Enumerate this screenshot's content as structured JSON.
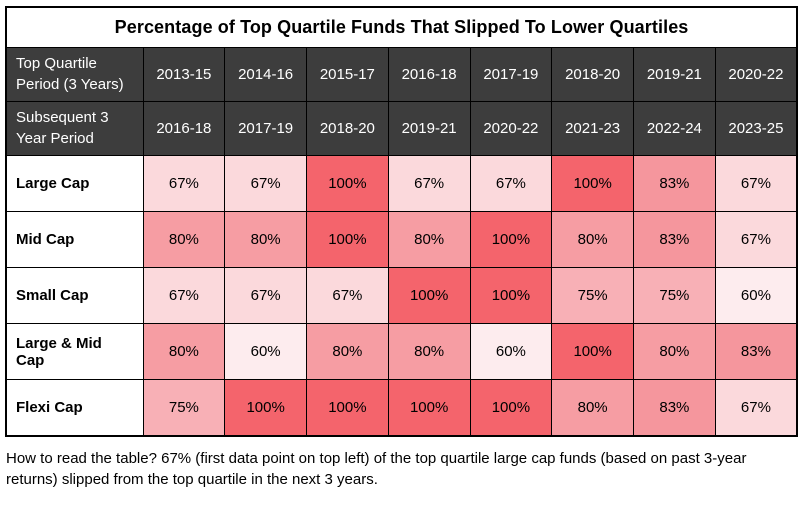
{
  "chart_data": {
    "type": "heatmap",
    "title": "Percentage of Top Quartile Funds That Slipped To Lower Quartiles",
    "row_header_top": "Top Quartile Period (3 Years)",
    "row_header_bottom": "Subsequent 3 Year Period",
    "top_quartile_periods": [
      "2013-15",
      "2014-16",
      "2015-17",
      "2016-18",
      "2017-19",
      "2018-20",
      "2019-21",
      "2020-22"
    ],
    "subsequent_periods": [
      "2016-18",
      "2017-19",
      "2018-20",
      "2019-21",
      "2020-22",
      "2021-23",
      "2022-24",
      "2023-25"
    ],
    "rows": [
      {
        "label": "Large Cap",
        "values": [
          "67%",
          "67%",
          "100%",
          "67%",
          "67%",
          "100%",
          "83%",
          "67%"
        ]
      },
      {
        "label": "Mid Cap",
        "values": [
          "80%",
          "80%",
          "100%",
          "80%",
          "100%",
          "80%",
          "83%",
          "67%"
        ]
      },
      {
        "label": "Small Cap",
        "values": [
          "67%",
          "67%",
          "67%",
          "100%",
          "100%",
          "75%",
          "75%",
          "60%"
        ]
      },
      {
        "label": "Large & Mid Cap",
        "values": [
          "80%",
          "60%",
          "80%",
          "80%",
          "60%",
          "100%",
          "80%",
          "83%"
        ]
      },
      {
        "label": "Flexi Cap",
        "values": [
          "75%",
          "100%",
          "100%",
          "100%",
          "100%",
          "80%",
          "83%",
          "67%"
        ]
      }
    ]
  },
  "colors": {
    "header_bg": "#3d3d3d",
    "header_text": "#ffffff",
    "border": "#000000",
    "heatmap": {
      "60%": "#fdecee",
      "67%": "#fbd9dc",
      "75%": "#f8b0b6",
      "80%": "#f69da3",
      "83%": "#f5969d",
      "100%": "#f4646c"
    }
  },
  "footnote": "How to read the table? 67% (first data point on top left) of the top quartile large cap funds (based on past 3-year returns) slipped from the top quartile in the next 3 years."
}
